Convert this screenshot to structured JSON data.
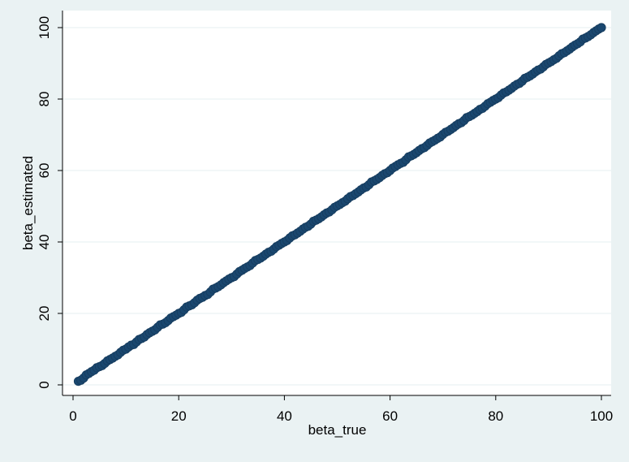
{
  "chart_data": {
    "type": "scatter",
    "title": "",
    "xlabel": "beta_true",
    "ylabel": "beta_estimated",
    "xlim": [
      0,
      100
    ],
    "ylim": [
      0,
      100
    ],
    "xticks": [
      0,
      20,
      40,
      60,
      80,
      100
    ],
    "yticks": [
      0,
      20,
      40,
      60,
      80,
      100
    ],
    "grid": "horizontal",
    "legend": "none",
    "marker_color": "#1a476f",
    "background_color": "#eaf2f3",
    "plot_background": "#ffffff",
    "series": [
      {
        "x": [
          1,
          1.5,
          2,
          2.5,
          3,
          3.5,
          4,
          4.5,
          5,
          5.5,
          6,
          6.5,
          7,
          7.5,
          8,
          8.5,
          9,
          9.5,
          10,
          10.5,
          11,
          11.5,
          12,
          12.5,
          13,
          13.5,
          14,
          14.5,
          15,
          15.5,
          16,
          16.5,
          17,
          17.5,
          18,
          18.5,
          19,
          19.5,
          20,
          20.5,
          21,
          21.5,
          22,
          22.5,
          23,
          23.5,
          24,
          24.5,
          25,
          25.5,
          26,
          26.5,
          27,
          27.5,
          28,
          28.5,
          29,
          29.5,
          30,
          30.5,
          31,
          31.5,
          32,
          32.5,
          33,
          33.5,
          34,
          34.5,
          35,
          35.5,
          36,
          36.5,
          37,
          37.5,
          38,
          38.5,
          39,
          39.5,
          40,
          40.5,
          41,
          41.5,
          42,
          42.5,
          43,
          43.5,
          44,
          44.5,
          45,
          45.5,
          46,
          46.5,
          47,
          47.5,
          48,
          48.5,
          49,
          49.5,
          50,
          50.5,
          51,
          51.5,
          52,
          52.5,
          53,
          53.5,
          54,
          54.5,
          55,
          55.5,
          56,
          56.5,
          57,
          57.5,
          58,
          58.5,
          59,
          59.5,
          60,
          60.5,
          61,
          61.5,
          62,
          62.5,
          63,
          63.5,
          64,
          64.5,
          65,
          65.5,
          66,
          66.5,
          67,
          67.5,
          68,
          68.5,
          69,
          69.5,
          70,
          70.5,
          71,
          71.5,
          72,
          72.5,
          73,
          73.5,
          74,
          74.5,
          75,
          75.5,
          76,
          76.5,
          77,
          77.5,
          78,
          78.5,
          79,
          79.5,
          80,
          80.5,
          81,
          81.5,
          82,
          82.5,
          83,
          83.5,
          84,
          84.5,
          85,
          85.5,
          86,
          86.5,
          87,
          87.5,
          88,
          88.5,
          89,
          89.5,
          90,
          90.5,
          91,
          91.5,
          92,
          92.5,
          93,
          93.5,
          94,
          94.5,
          95,
          95.5,
          96,
          96.5,
          97,
          97.5,
          98,
          98.5,
          99,
          99.5,
          100
        ],
        "y": [
          1,
          1.3,
          1.9,
          2.8,
          3.2,
          3.7,
          4.1,
          4.8,
          5.1,
          5.4,
          6.0,
          6.7,
          7.1,
          7.5,
          8.0,
          8.4,
          9.1,
          9.7,
          10.0,
          10.6,
          11.1,
          11.3,
          12.0,
          12.7,
          13.0,
          13.4,
          14.1,
          14.6,
          15.0,
          15.4,
          16.1,
          16.8,
          17.0,
          17.4,
          18.0,
          18.7,
          19.1,
          19.5,
          20.0,
          20.3,
          21.0,
          21.8,
          22.1,
          22.4,
          23.0,
          23.7,
          24.2,
          24.5,
          25.0,
          25.3,
          26.0,
          26.8,
          27.1,
          27.5,
          28.0,
          28.6,
          29.1,
          29.6,
          30.0,
          30.3,
          31.0,
          31.7,
          32.1,
          32.6,
          33.0,
          33.4,
          34.1,
          34.8,
          35.1,
          35.5,
          36.0,
          36.6,
          37.1,
          37.4,
          38.0,
          38.7,
          39.1,
          39.6,
          40.0,
          40.4,
          41.1,
          41.7,
          42.0,
          42.5,
          43.0,
          43.6,
          44.1,
          44.4,
          45.0,
          45.8,
          46.1,
          46.5,
          47.0,
          47.6,
          48.1,
          48.4,
          49.0,
          49.7,
          50.1,
          50.5,
          51.0,
          51.4,
          52.1,
          52.7,
          53.0,
          53.5,
          54.0,
          54.6,
          55.1,
          55.4,
          56.0,
          56.8,
          57.1,
          57.5,
          58.0,
          58.6,
          59.1,
          59.4,
          60.0,
          60.7,
          61.1,
          61.6,
          62.0,
          62.3,
          63.0,
          63.8,
          64.1,
          64.5,
          65.0,
          65.6,
          66.1,
          66.4,
          67.0,
          67.7,
          68.1,
          68.5,
          69.0,
          69.4,
          70.1,
          70.7,
          71.0,
          71.5,
          72.0,
          72.6,
          73.1,
          73.4,
          74.0,
          74.8,
          75.1,
          75.5,
          76.0,
          76.5,
          77.1,
          77.4,
          78.0,
          78.7,
          79.1,
          79.6,
          80.0,
          80.4,
          81.1,
          81.7,
          82.0,
          82.5,
          83.0,
          83.6,
          84.1,
          84.4,
          85.0,
          85.8,
          86.1,
          86.5,
          87.0,
          87.6,
          88.1,
          88.4,
          89.0,
          89.7,
          90.1,
          90.5,
          91.0,
          91.4,
          92.1,
          92.7,
          93.0,
          93.5,
          94.0,
          94.6,
          95.1,
          95.5,
          96.0,
          96.8,
          97.1,
          97.5,
          98.0,
          98.6,
          99.1,
          99.6,
          100.0
        ]
      }
    ]
  }
}
